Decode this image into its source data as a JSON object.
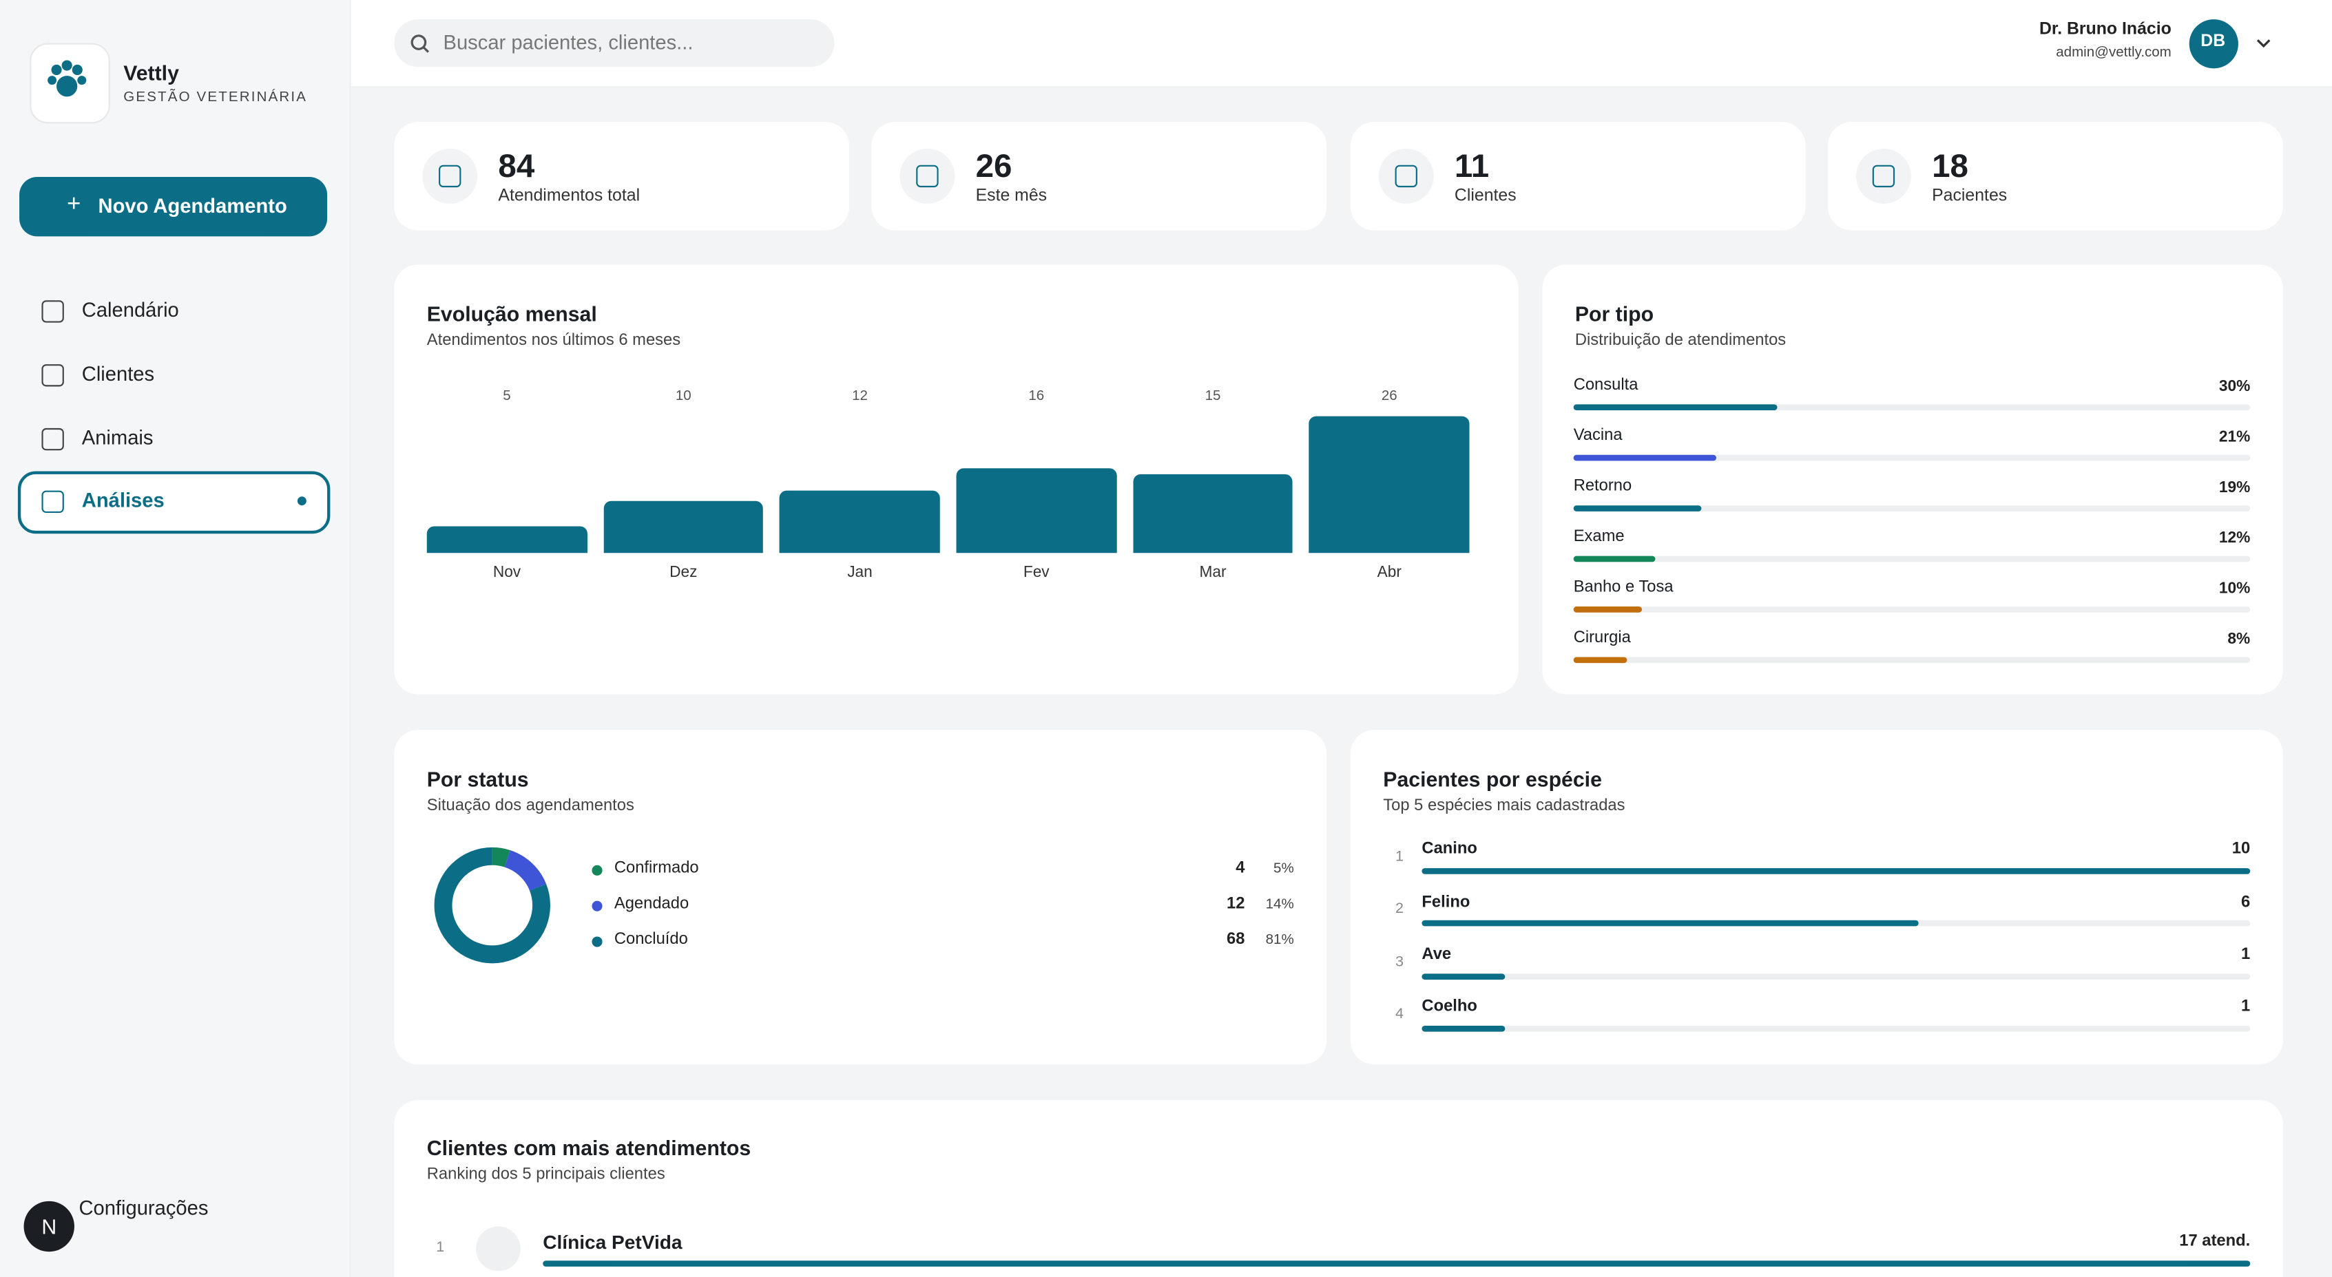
{
  "sidebar": {
    "brand": "Vettly",
    "tagline": "GESTÃO VETERINÁRIA",
    "new_button": "Novo Agendamento",
    "nav": [
      "Calendário",
      "Clientes",
      "Animais",
      "Análises"
    ],
    "settings": "Configurações",
    "avatar": "N"
  },
  "header": {
    "search_placeholder": "Buscar pacientes, clientes...",
    "user_name": "Dr. Bruno Inácio",
    "user_email": "admin@vettly.com",
    "initials": "DB"
  },
  "stats": [
    {
      "value": 84,
      "label": "Atendimentos total"
    },
    {
      "value": 26,
      "label": "Este mês"
    },
    {
      "value": 11,
      "label": "Clientes"
    },
    {
      "value": 18,
      "label": "Pacientes"
    }
  ],
  "monthly": {
    "type": "bar",
    "title": "Evolução mensal",
    "subtitle": "Atendimentos nos últimos 6 meses",
    "categories": [
      "Nov",
      "Dez",
      "Jan",
      "Fev",
      "Mar",
      "Abr"
    ],
    "values": [
      5,
      10,
      12,
      16,
      15,
      26
    ],
    "color": "#0b6e86"
  },
  "by_type": {
    "title": "Por tipo",
    "subtitle": "Distribuição de atendimentos",
    "categories": [
      "Consulta",
      "Vacina",
      "Retorno",
      "Exame",
      "Banho e Tosa",
      "Cirurgia"
    ],
    "values": [
      30,
      21,
      19,
      12,
      10,
      8
    ],
    "value_labels": [
      "30%",
      "21%",
      "19%",
      "12%",
      "10%",
      "8%"
    ],
    "colors": [
      "#0b6e86",
      "#3d55d6",
      "#0b6e86",
      "#13875a",
      "#c2700e",
      "#c2700e"
    ]
  },
  "by_status": {
    "title": "Por status",
    "subtitle": "Situação dos agendamentos",
    "categories": [
      "Confirmado",
      "Agendado",
      "Concluído"
    ],
    "counts": [
      4,
      12,
      68
    ],
    "percents": [
      5,
      14,
      81
    ],
    "percent_labels": [
      "5%",
      "14%",
      "81%"
    ],
    "colors": [
      "#13875a",
      "#3d55d6",
      "#0b6e86"
    ]
  },
  "species": {
    "title": "Pacientes por espécie",
    "subtitle": "Top 5 espécies mais cadastradas",
    "ranks": [
      1,
      2,
      3,
      4
    ],
    "categories": [
      "Canino",
      "Felino",
      "Ave",
      "Coelho"
    ],
    "values": [
      10,
      6,
      1,
      1
    ]
  },
  "top_clients": {
    "title": "Clientes com mais atendimentos",
    "subtitle": "Ranking dos 5 principais clientes",
    "ranks": [
      1
    ],
    "names": [
      "Clínica PetVida"
    ],
    "values": [
      17
    ],
    "value_labels": [
      "17 atend."
    ]
  }
}
